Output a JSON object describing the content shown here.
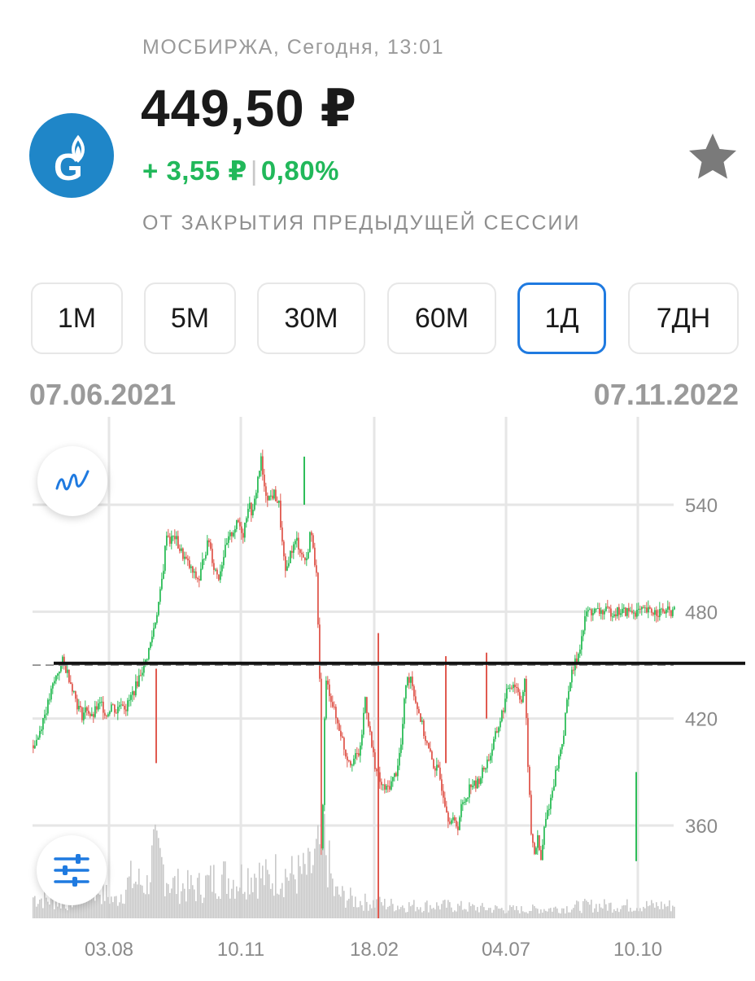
{
  "header": {
    "exchange_line": "МОСБИРЖА, Сегодня, 13:01",
    "price": "449,50 ₽",
    "change_abs": "+ 3,55 ₽",
    "change_sep": "|",
    "change_pct": "0,80%",
    "change_note": "ОТ ЗАКРЫТИЯ ПРЕДЫДУЩЕЙ СЕССИИ",
    "logo_icon": "gazprom-logo-icon",
    "favorite_icon": "star-icon"
  },
  "tabs": [
    {
      "label": "1М",
      "active": false
    },
    {
      "label": "5М",
      "active": false
    },
    {
      "label": "30М",
      "active": false
    },
    {
      "label": "60М",
      "active": false
    },
    {
      "label": "1Д",
      "active": true
    },
    {
      "label": "7ДН",
      "active": false
    }
  ],
  "range": {
    "start": "07.06.2021",
    "end": "07.11.2022"
  },
  "buttons": {
    "chart_type_icon": "line-chart-icon",
    "settings_icon": "sliders-icon"
  },
  "colors": {
    "up": "#2ebd59",
    "down": "#e05a50",
    "accent": "#1f7ae0",
    "volume": "#c9c9c9",
    "logo_bg": "#1f86c8"
  },
  "chart_data": {
    "type": "candlestick",
    "x_tick_labels": [
      "03.08",
      "10.11",
      "18.02",
      "04.07",
      "10.10"
    ],
    "y_tick_labels": [
      "540",
      "480",
      "420",
      "360"
    ],
    "ylim": [
      330,
      578
    ],
    "grid": true,
    "series": [
      {
        "name": "",
        "close_path": [
          [
            0,
            405
          ],
          [
            6,
            410
          ],
          [
            12,
            420
          ],
          [
            18,
            428
          ],
          [
            24,
            438
          ],
          [
            30,
            446
          ],
          [
            36,
            452
          ],
          [
            42,
            446
          ],
          [
            48,
            438
          ],
          [
            54,
            428
          ],
          [
            60,
            422
          ],
          [
            66,
            426
          ],
          [
            72,
            420
          ],
          [
            78,
            426
          ],
          [
            84,
            428
          ],
          [
            90,
            422
          ],
          [
            96,
            428
          ],
          [
            102,
            424
          ],
          [
            108,
            430
          ],
          [
            114,
            426
          ],
          [
            120,
            432
          ],
          [
            126,
            438
          ],
          [
            132,
            446
          ],
          [
            138,
            452
          ],
          [
            144,
            462
          ],
          [
            150,
            475
          ],
          [
            156,
            490
          ],
          [
            160,
            505
          ],
          [
            164,
            525
          ],
          [
            168,
            520
          ],
          [
            174,
            522
          ],
          [
            180,
            515
          ],
          [
            186,
            510
          ],
          [
            192,
            505
          ],
          [
            198,
            500
          ],
          [
            204,
            498
          ],
          [
            210,
            512
          ],
          [
            216,
            520
          ],
          [
            222,
            505
          ],
          [
            228,
            500
          ],
          [
            234,
            512
          ],
          [
            240,
            520
          ],
          [
            246,
            526
          ],
          [
            252,
            530
          ],
          [
            258,
            524
          ],
          [
            264,
            540
          ],
          [
            270,
            535
          ],
          [
            276,
            555
          ],
          [
            280,
            565
          ],
          [
            284,
            548
          ],
          [
            290,
            544
          ],
          [
            296,
            546
          ],
          [
            302,
            540
          ],
          [
            306,
            518
          ],
          [
            310,
            500
          ],
          [
            314,
            510
          ],
          [
            318,
            515
          ],
          [
            324,
            520
          ],
          [
            330,
            512
          ],
          [
            336,
            508
          ],
          [
            340,
            524
          ],
          [
            344,
            518
          ],
          [
            348,
            500
          ],
          [
            350,
            470
          ],
          [
            352,
            440
          ],
          [
            354,
            350
          ],
          [
            356,
            370
          ],
          [
            358,
            420
          ],
          [
            360,
            440
          ],
          [
            364,
            435
          ],
          [
            368,
            428
          ],
          [
            372,
            420
          ],
          [
            378,
            412
          ],
          [
            384,
            400
          ],
          [
            390,
            396
          ],
          [
            396,
            398
          ],
          [
            402,
            402
          ],
          [
            408,
            432
          ],
          [
            412,
            418
          ],
          [
            416,
            404
          ],
          [
            422,
            390
          ],
          [
            428,
            382
          ],
          [
            434,
            380
          ],
          [
            440,
            384
          ],
          [
            446,
            390
          ],
          [
            452,
            405
          ],
          [
            458,
            440
          ],
          [
            464,
            444
          ],
          [
            470,
            430
          ],
          [
            476,
            420
          ],
          [
            480,
            412
          ],
          [
            486,
            402
          ],
          [
            492,
            394
          ],
          [
            498,
            390
          ],
          [
            504,
            378
          ],
          [
            510,
            365
          ],
          [
            516,
            362
          ],
          [
            522,
            360
          ],
          [
            526,
            370
          ],
          [
            532,
            376
          ],
          [
            538,
            384
          ],
          [
            544,
            382
          ],
          [
            550,
            388
          ],
          [
            556,
            394
          ],
          [
            562,
            400
          ],
          [
            568,
            410
          ],
          [
            572,
            416
          ],
          [
            578,
            426
          ],
          [
            584,
            438
          ],
          [
            590,
            440
          ],
          [
            596,
            436
          ],
          [
            600,
            430
          ],
          [
            604,
            440
          ],
          [
            608,
            395
          ],
          [
            612,
            355
          ],
          [
            616,
            345
          ],
          [
            620,
            352
          ],
          [
            624,
            340
          ],
          [
            628,
            358
          ],
          [
            632,
            368
          ],
          [
            636,
            375
          ],
          [
            640,
            385
          ],
          [
            646,
            398
          ],
          [
            652,
            412
          ],
          [
            658,
            438
          ],
          [
            664,
            448
          ],
          [
            670,
            457
          ],
          [
            676,
            470
          ],
          [
            680,
            480
          ]
        ]
      }
    ],
    "volume_profile": [
      [
        0,
        0.25
      ],
      [
        40,
        0.18
      ],
      [
        60,
        0.3
      ],
      [
        80,
        0.35
      ],
      [
        100,
        0.2
      ],
      [
        120,
        0.45
      ],
      [
        140,
        0.4
      ],
      [
        148,
        0.75
      ],
      [
        160,
        0.6
      ],
      [
        170,
        0.4
      ],
      [
        200,
        0.35
      ],
      [
        230,
        0.5
      ],
      [
        250,
        0.45
      ],
      [
        270,
        0.55
      ],
      [
        290,
        0.45
      ],
      [
        300,
        0.55
      ],
      [
        320,
        0.5
      ],
      [
        340,
        0.55
      ],
      [
        350,
        0.75
      ],
      [
        356,
        1.0
      ],
      [
        370,
        0.3
      ],
      [
        400,
        0.2
      ],
      [
        450,
        0.15
      ],
      [
        500,
        0.15
      ],
      [
        550,
        0.12
      ],
      [
        600,
        0.1
      ],
      [
        650,
        0.12
      ],
      [
        680,
        0.15
      ]
    ],
    "reference_line_value": 451,
    "prev_close_dashed_value": 450
  }
}
